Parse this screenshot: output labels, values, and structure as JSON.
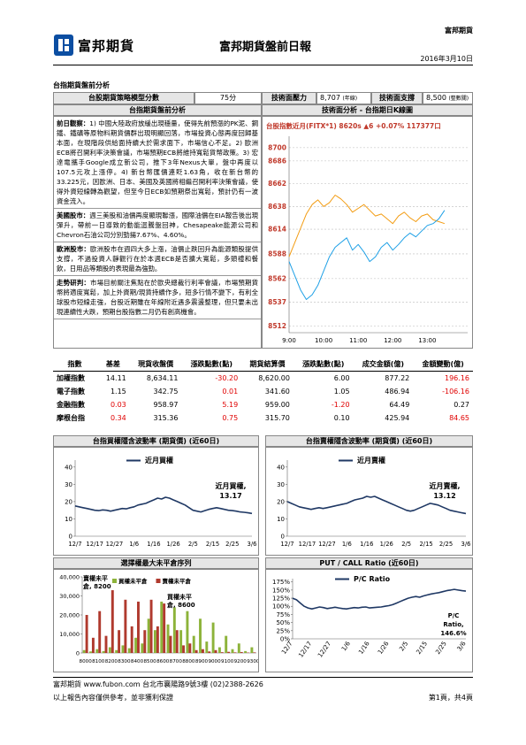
{
  "header": {
    "company_tag": "富邦期貨",
    "logo": "富邦期貨",
    "title": "富邦期貨盤前日報",
    "date": "2016年3月10日"
  },
  "section_title": "台指期貨盤前分析",
  "strategy": {
    "score_label": "台股期貨策略模型分數",
    "score": "75分",
    "resistance_label": "技術面壓力",
    "resistance": "8,707",
    "resistance_note": "(年線)",
    "support_label": "技術面支撐",
    "support": "8,500",
    "support_note": "(整數關)"
  },
  "analysis": {
    "title": "台指期貨盤前分析",
    "paragraphs": [
      {
        "label": "前日觀察：",
        "text": "1) 中國大陸政府放緩出現穩量，使得先前預漲的PK泥、鋼鐵、鐵礦等原物料期貨價群出現明顯回落，市場投資心態再度回歸基本面，在現階段供給面持續大於需求面下，市場信心不足。2) 歐洲ECB將召開利率決策會議，市場預期ECB將維持寬鬆貨幣政策。3) 宏達電攜手Google成立新公司，推下3年Nexus大單，盤中再度以107.5元攻上漲停。4) 新台幣匯價連貶1.63角，收在新台幣的33.225元，因歐洲、日本、美國及英國將相繼召開利率決策會議，使得外資短線轉為觀望，但至今日ECB如預期祭出寬鬆，預計仍有一波資金流入。"
      },
      {
        "label": "美國股市：",
        "text": "週三美股和油價再度顯現聯漲，國際油價在EIA報告後出現彈升，帶前一日導致的動能迴騰盤回神，Chesapeake能源公司和Chevron石油公司分別勁揚7.67%、4.60%。"
      },
      {
        "label": "歐洲股市：",
        "text": "歐洲股市在週四大多上漲，油價止跌回升為能源類股提供支撐，不過投資人靜觀行在於本週ECB是否擴大寬鬆，多頭禮和餐飲，日用品等類股的表現最為強勁。"
      },
      {
        "label": "走勢研判：",
        "text": "市場目前關注焦點在於歐央總裁行利率會議，市場預期貨幣將適度寬鬆，加上外資期/現貨持續作多，短多行情不變下，有利全球股市短線走強，台股近期雖在年線附近遇多震盪整理，但只要未出現連續性大跌，預期台股指數二月仍有創高機會。"
      }
    ]
  },
  "intraday": {
    "title": "技術面分析 - 台指期日K線圖",
    "chart": {
      "type": "line",
      "legend_text": "台股指數近月(FITX*1) 8620s ▲6 +0.07% 117377口",
      "categories": [
        "9:00",
        null,
        null,
        null,
        null,
        null,
        "10:00",
        null,
        null,
        null,
        null,
        null,
        "11:00",
        null,
        null,
        null,
        null,
        null,
        "12:00",
        null,
        null,
        null,
        null,
        null,
        "13:00",
        null,
        null,
        null
      ],
      "series": [
        {
          "color": "#f39c12",
          "values": [
            8585,
            8600,
            8615,
            8630,
            8640,
            8645,
            8638,
            8642,
            8650,
            8646,
            8640,
            8632,
            8636,
            8640,
            8634,
            8628,
            8630,
            8625,
            8620,
            8628,
            8632,
            8626,
            8622,
            8628,
            8630,
            8624,
            8622,
            8620
          ]
        },
        {
          "color": "#1ea0e6",
          "values": [
            8580,
            8565,
            8550,
            8540,
            8545,
            8555,
            8570,
            8585,
            8595,
            8600,
            8605,
            8592,
            8598,
            8590,
            8580,
            8585,
            8595,
            8600,
            8592,
            8598,
            8605,
            8610,
            8606,
            8612,
            8618,
            8620,
            8625,
            8634
          ]
        }
      ],
      "ylim": [
        8505,
        8712
      ],
      "yticks": [
        8700,
        8686,
        8662,
        8638,
        8614,
        8588,
        8562,
        8537,
        8512
      ],
      "tick_color": "#c0392b",
      "grid": true
    }
  },
  "table": {
    "columns": [
      "指數",
      "基差",
      "現貨收盤價",
      "漲跌點數(點)",
      "期貨結算價",
      "漲跌點數(點)",
      "成交金額(億)",
      "金額變動(億)"
    ],
    "rows": [
      {
        "cells": [
          "加權指數",
          "14.11",
          "8,634.11",
          "-30.20",
          "8,620.00",
          "6.00",
          "877.22",
          "196.16"
        ],
        "colors": [
          "#000",
          "#000",
          "#000",
          "#e00000",
          "#000",
          "#000",
          "#000",
          "#e00000"
        ]
      },
      {
        "cells": [
          "電子指數",
          "1.15",
          "342.75",
          "0.01",
          "341.60",
          "1.05",
          "486.94",
          "-106.16"
        ],
        "colors": [
          "#000",
          "#000",
          "#000",
          "#e00000",
          "#000",
          "#000",
          "#000",
          "#e00000"
        ]
      },
      {
        "cells": [
          "金融指數",
          "0.03",
          "958.97",
          "5.19",
          "959.00",
          "-1.20",
          "64.49",
          "0.27"
        ],
        "colors": [
          "#000",
          "#e00000",
          "#000",
          "#e00000",
          "#000",
          "#e00000",
          "#000",
          "#000"
        ]
      },
      {
        "cells": [
          "摩根台指",
          "0.34",
          "315.36",
          "0.75",
          "315.70",
          "0.10",
          "425.94",
          "84.65"
        ],
        "colors": [
          "#000",
          "#e00000",
          "#000",
          "#e00000",
          "#000",
          "#000",
          "#000",
          "#e00000"
        ]
      }
    ]
  },
  "charts": [
    {
      "type": "line",
      "title": "台指買權隱含波動率 (期貨價) (近60日)",
      "categories": [
        "12/7",
        null,
        null,
        null,
        null,
        "12/17",
        null,
        null,
        null,
        null,
        "12/27",
        null,
        null,
        null,
        null,
        "1/6",
        null,
        null,
        null,
        null,
        "1/16",
        null,
        null,
        null,
        null,
        "1/26",
        null,
        null,
        null,
        null,
        "2/5",
        null,
        null,
        null,
        null,
        "2/15",
        null,
        null,
        null,
        null,
        "2/25",
        null,
        null,
        null,
        null,
        "3/6"
      ],
      "series": [
        {
          "name": "近月買權",
          "color": "#1f3864",
          "values": [
            17.5,
            17,
            16.5,
            16,
            15.5,
            15,
            14.8,
            15.2,
            15,
            14.5,
            15,
            15.5,
            16,
            15.8,
            16.5,
            17,
            18,
            18.5,
            19,
            20,
            21,
            22,
            21.5,
            22.5,
            22,
            21,
            20,
            19,
            18,
            16.5,
            15,
            14.5,
            14,
            14.8,
            15.5,
            16,
            16.5,
            16,
            15.5,
            15,
            14.8,
            14.5,
            14,
            13.8,
            13.5,
            13.17
          ]
        }
      ],
      "annotation_lines": [
        "近月買權,",
        "13.17"
      ],
      "ylim": [
        0,
        44
      ],
      "yticks": [
        0,
        10,
        20,
        30,
        40
      ],
      "grid": false
    },
    {
      "type": "line",
      "title": "台指賣權隱含波動率 (期貨價) (近60日)",
      "categories": [
        "12/7",
        null,
        null,
        null,
        null,
        "12/17",
        null,
        null,
        null,
        null,
        "12/27",
        null,
        null,
        null,
        null,
        "1/6",
        null,
        null,
        null,
        null,
        "1/16",
        null,
        null,
        null,
        null,
        "1/26",
        null,
        null,
        null,
        null,
        "2/5",
        null,
        null,
        null,
        null,
        "2/15",
        null,
        null,
        null,
        null,
        "2/25",
        null,
        null,
        null,
        null,
        "3/6"
      ],
      "series": [
        {
          "name": "近月賣權",
          "color": "#1f3864",
          "values": [
            20,
            19,
            18,
            17,
            16.5,
            16,
            15.5,
            16,
            16.5,
            16,
            16.5,
            17,
            17.5,
            18,
            18.5,
            19,
            20,
            21,
            21.5,
            22,
            23,
            22.5,
            23,
            22,
            21,
            20,
            19,
            18,
            17,
            16,
            15,
            14.5,
            15,
            16,
            17,
            18,
            19,
            18.5,
            18,
            17,
            16,
            15,
            14.5,
            14,
            13.5,
            13.12
          ]
        }
      ],
      "annotation_lines": [
        "近月賣權,",
        "13.12"
      ],
      "ylim": [
        0,
        44
      ],
      "yticks": [
        0,
        10,
        20,
        30,
        40
      ],
      "grid": false
    },
    {
      "type": "bar",
      "title": "選擇權最大未平倉序列",
      "categories": [
        "8000",
        null,
        "8100",
        null,
        "8200",
        null,
        "8300",
        null,
        "8400",
        null,
        "8500",
        null,
        "8600",
        null,
        "8700",
        null,
        "8800",
        null,
        "8900",
        null,
        "9000",
        null,
        "9100",
        null,
        "9200",
        null,
        "9300"
      ],
      "series": [
        {
          "name": "買權未平倉",
          "color": "#8db33a",
          "values": [
            1500,
            800,
            2000,
            1000,
            3000,
            1500,
            4000,
            2500,
            8000,
            5000,
            18000,
            12000,
            27000,
            15000,
            24000,
            12000,
            22000,
            9000,
            18000,
            6000,
            16000,
            3000,
            9000,
            2000,
            5000,
            1000,
            3000
          ]
        },
        {
          "name": "賣權未平倉",
          "color": "#b03a2e",
          "values": [
            20000,
            8000,
            22000,
            9000,
            33000,
            12000,
            28000,
            14000,
            27000,
            12000,
            28000,
            14000,
            26000,
            9000,
            12000,
            4000,
            5000,
            1500,
            2000,
            800,
            1500,
            400,
            600,
            300,
            500,
            200,
            300
          ]
        }
      ],
      "annotations": [
        {
          "lines": [
            "賣權未平",
            "倉, 8200"
          ]
        },
        {
          "lines": [
            "買權未平",
            "倉, 8600"
          ]
        }
      ],
      "ylim": [
        0,
        40000
      ],
      "yticks": [
        0,
        {
          "value": 10000,
          "label": "10,000"
        },
        {
          "value": 20000,
          "label": "20,000"
        },
        {
          "value": 30000,
          "label": "30,000"
        },
        {
          "value": 40000,
          "label": "40,000"
        }
      ],
      "grid": false
    },
    {
      "type": "line",
      "title": "PUT / CALL Ratio (近60日)",
      "categories": [
        "12/7",
        null,
        null,
        null,
        null,
        "12/17",
        null,
        null,
        null,
        null,
        "12/27",
        null,
        null,
        null,
        null,
        "1/6",
        null,
        null,
        null,
        null,
        "1/16",
        null,
        null,
        null,
        null,
        "1/26",
        null,
        null,
        null,
        null,
        "2/5",
        null,
        null,
        null,
        null,
        "2/15",
        null,
        null,
        null,
        null,
        "2/25",
        null,
        null,
        null,
        null,
        "3/6"
      ],
      "series": [
        {
          "name": "P/C Ratio",
          "color": "#1f3864",
          "values": [
            125,
            120,
            110,
            100,
            95,
            92,
            95,
            98,
            96,
            93,
            95,
            97,
            95,
            93,
            92,
            94,
            96,
            95,
            97,
            98,
            95,
            96,
            97,
            98,
            100,
            102,
            105,
            110,
            115,
            120,
            125,
            128,
            130,
            128,
            132,
            135,
            138,
            140,
            142,
            145,
            148,
            150,
            152,
            150,
            148,
            146.6
          ]
        }
      ],
      "annotation_lines": [
        "P/C",
        "Ratio,",
        "146.6%"
      ],
      "ylim": [
        0,
        185
      ],
      "yticks": [
        {
          "value": 0,
          "label": "0%"
        },
        {
          "value": 25,
          "label": "25%"
        },
        {
          "value": 50,
          "label": "50%"
        },
        {
          "value": 75,
          "label": "75%"
        },
        {
          "value": 100,
          "label": "100%"
        },
        {
          "value": 125,
          "label": "125%"
        },
        {
          "value": 150,
          "label": "150%"
        },
        {
          "value": 175,
          "label": "175%"
        }
      ],
      "grid": false
    }
  ],
  "footer": {
    "contact": "富邦期貨 www.fubon.com 台北市襄陽路9號3樓 (02)2388-2626",
    "disclaimer": "以上報告內容僅供參考，並非獲利保證",
    "page": "第1頁，共4頁"
  }
}
